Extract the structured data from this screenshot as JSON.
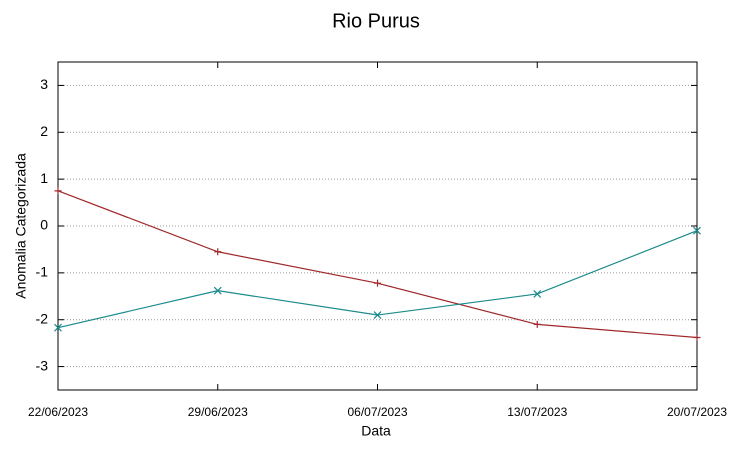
{
  "chart_data": {
    "type": "line",
    "title": "Rio Purus",
    "x_label": "Data",
    "y_label": "Anomalia Categorizada",
    "categories": [
      "22/06/2023",
      "29/06/2023",
      "06/07/2023",
      "13/07/2023",
      "20/07/2023"
    ],
    "series": [
      {
        "color": "#a0282a",
        "marker": "plus",
        "values": [
          0.75,
          -0.55,
          -1.22,
          -2.1,
          -2.38
        ]
      },
      {
        "color": "#1a8a8a",
        "marker": "cross",
        "values": [
          -2.17,
          -1.38,
          -1.9,
          -1.45,
          -0.1
        ]
      }
    ],
    "ylim": [
      -3.5,
      3.5
    ],
    "yticks": [
      -3,
      -2,
      -1,
      0,
      1,
      2,
      3
    ],
    "grid": true
  }
}
